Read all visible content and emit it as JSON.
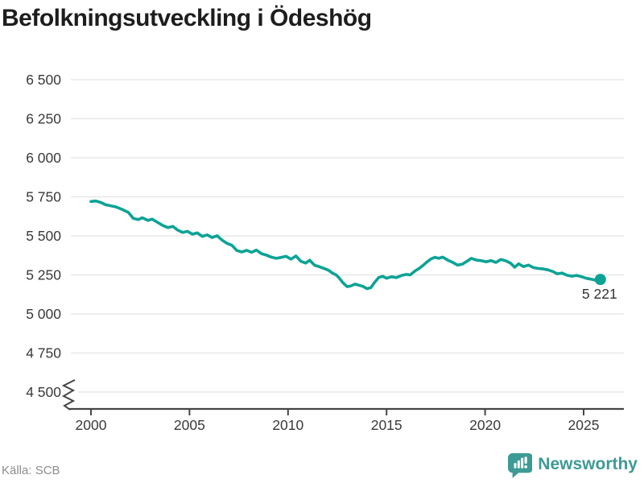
{
  "title": "Befolkningsutveckling i Ödeshög",
  "chart_data": {
    "type": "line",
    "title": "Befolkningsutveckling i Ödeshög",
    "series_name": "Befolkning",
    "xlabel": "",
    "ylabel": "",
    "ylim_display": [
      4500,
      6500
    ],
    "axis_break_bottom": true,
    "grid": true,
    "line_color": "#0CA396",
    "grid_color": "#E3E3E3",
    "axis_color": "#454545",
    "tick_label_color": "#3A3A3A",
    "end_label": "5 221",
    "end_value": 5221,
    "y_ticks": [
      {
        "value": 6500,
        "label": "6 500"
      },
      {
        "value": 6250,
        "label": "6 250"
      },
      {
        "value": 6000,
        "label": "6 000"
      },
      {
        "value": 5750,
        "label": "5 750"
      },
      {
        "value": 5500,
        "label": "5 500"
      },
      {
        "value": 5250,
        "label": "5 250"
      },
      {
        "value": 5000,
        "label": "5 000"
      },
      {
        "value": 4750,
        "label": "4 750"
      },
      {
        "value": 4500,
        "label": "4 500"
      }
    ],
    "x_ticks": [
      {
        "value": 2000,
        "label": "2000"
      },
      {
        "value": 2005,
        "label": "2005"
      },
      {
        "value": 2010,
        "label": "2010"
      },
      {
        "value": 2015,
        "label": "2015"
      },
      {
        "value": 2020,
        "label": "2020"
      },
      {
        "value": 2025,
        "label": "2025"
      }
    ],
    "points": [
      [
        2000.0,
        5720
      ],
      [
        2000.25,
        5723
      ],
      [
        2000.5,
        5714
      ],
      [
        2000.75,
        5699
      ],
      [
        2001.0,
        5693
      ],
      [
        2001.3,
        5684
      ],
      [
        2001.6,
        5668
      ],
      [
        2001.9,
        5650
      ],
      [
        2002.15,
        5612
      ],
      [
        2002.4,
        5604
      ],
      [
        2002.6,
        5616
      ],
      [
        2002.9,
        5599
      ],
      [
        2003.1,
        5607
      ],
      [
        2003.4,
        5585
      ],
      [
        2003.65,
        5566
      ],
      [
        2003.9,
        5553
      ],
      [
        2004.15,
        5561
      ],
      [
        2004.4,
        5537
      ],
      [
        2004.65,
        5522
      ],
      [
        2004.9,
        5529
      ],
      [
        2005.15,
        5511
      ],
      [
        2005.4,
        5519
      ],
      [
        2005.65,
        5497
      ],
      [
        2005.9,
        5506
      ],
      [
        2006.15,
        5489
      ],
      [
        2006.4,
        5501
      ],
      [
        2006.65,
        5473
      ],
      [
        2006.9,
        5452
      ],
      [
        2007.15,
        5440
      ],
      [
        2007.4,
        5406
      ],
      [
        2007.65,
        5397
      ],
      [
        2007.9,
        5407
      ],
      [
        2008.15,
        5395
      ],
      [
        2008.4,
        5409
      ],
      [
        2008.65,
        5386
      ],
      [
        2008.9,
        5377
      ],
      [
        2009.15,
        5364
      ],
      [
        2009.4,
        5356
      ],
      [
        2009.65,
        5362
      ],
      [
        2009.9,
        5369
      ],
      [
        2010.15,
        5351
      ],
      [
        2010.4,
        5371
      ],
      [
        2010.65,
        5337
      ],
      [
        2010.9,
        5326
      ],
      [
        2011.1,
        5344
      ],
      [
        2011.35,
        5312
      ],
      [
        2011.6,
        5302
      ],
      [
        2011.85,
        5290
      ],
      [
        2012.05,
        5280
      ],
      [
        2012.25,
        5262
      ],
      [
        2012.45,
        5249
      ],
      [
        2012.6,
        5230
      ],
      [
        2012.8,
        5198
      ],
      [
        2013.0,
        5175
      ],
      [
        2013.2,
        5180
      ],
      [
        2013.4,
        5191
      ],
      [
        2013.6,
        5184
      ],
      [
        2013.8,
        5177
      ],
      [
        2014.0,
        5162
      ],
      [
        2014.2,
        5168
      ],
      [
        2014.4,
        5203
      ],
      [
        2014.6,
        5233
      ],
      [
        2014.8,
        5241
      ],
      [
        2015.0,
        5229
      ],
      [
        2015.25,
        5238
      ],
      [
        2015.5,
        5233
      ],
      [
        2015.75,
        5246
      ],
      [
        2016.0,
        5253
      ],
      [
        2016.2,
        5250
      ],
      [
        2016.45,
        5276
      ],
      [
        2016.65,
        5291
      ],
      [
        2016.85,
        5311
      ],
      [
        2017.05,
        5333
      ],
      [
        2017.25,
        5352
      ],
      [
        2017.45,
        5363
      ],
      [
        2017.65,
        5356
      ],
      [
        2017.85,
        5364
      ],
      [
        2018.1,
        5345
      ],
      [
        2018.35,
        5331
      ],
      [
        2018.6,
        5313
      ],
      [
        2018.85,
        5319
      ],
      [
        2019.1,
        5339
      ],
      [
        2019.3,
        5356
      ],
      [
        2019.55,
        5345
      ],
      [
        2019.8,
        5341
      ],
      [
        2020.05,
        5334
      ],
      [
        2020.3,
        5342
      ],
      [
        2020.55,
        5330
      ],
      [
        2020.8,
        5349
      ],
      [
        2021.05,
        5340
      ],
      [
        2021.3,
        5325
      ],
      [
        2021.5,
        5299
      ],
      [
        2021.7,
        5321
      ],
      [
        2021.95,
        5303
      ],
      [
        2022.2,
        5313
      ],
      [
        2022.45,
        5297
      ],
      [
        2022.7,
        5291
      ],
      [
        2022.95,
        5288
      ],
      [
        2023.2,
        5282
      ],
      [
        2023.45,
        5271
      ],
      [
        2023.65,
        5257
      ],
      [
        2023.9,
        5262
      ],
      [
        2024.15,
        5248
      ],
      [
        2024.4,
        5242
      ],
      [
        2024.65,
        5247
      ],
      [
        2024.9,
        5238
      ],
      [
        2025.15,
        5228
      ],
      [
        2025.4,
        5222
      ],
      [
        2025.6,
        5216
      ],
      [
        2025.85,
        5221
      ]
    ]
  },
  "footer": {
    "source": "Källa: SCB",
    "brand": "Newsworthy",
    "brand_color": "#3E9A94"
  }
}
